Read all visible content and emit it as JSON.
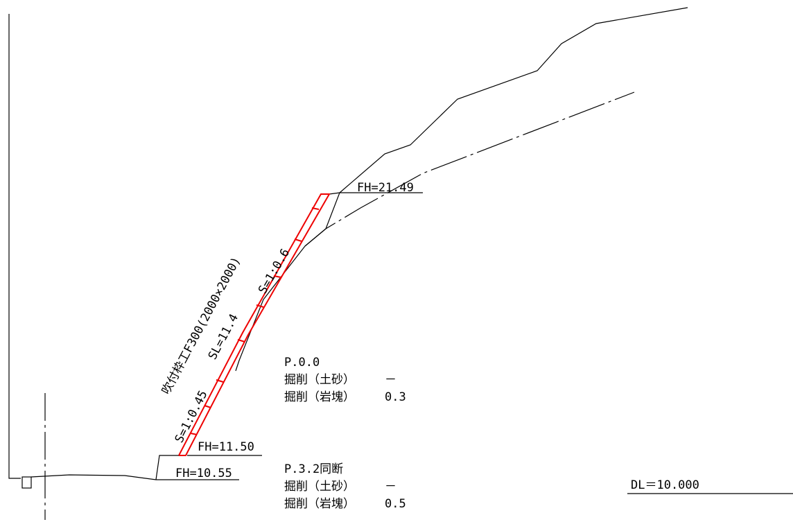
{
  "labels": {
    "fh_top": "FH=21.49",
    "fh_mid": "FH=11.50",
    "fh_bottom": "FH=10.55",
    "frame": "吹付枠工F300(2000×2000)",
    "slope_upper": "S=1:0.6",
    "slope_length": "SL=11.4",
    "slope_lower": "S=1:0.45",
    "datum": "DL＝10.000"
  },
  "sections": [
    {
      "station": "P.0.0",
      "rows": [
        {
          "name": "掘削（土砂）",
          "value": "－"
        },
        {
          "name": "掘削（岩塊）",
          "value": "0.3"
        }
      ]
    },
    {
      "station": "P.3.2同断",
      "rows": [
        {
          "name": "掘削（土砂）",
          "value": "－"
        },
        {
          "name": "掘削（岩塊）",
          "value": "0.5"
        }
      ]
    }
  ]
}
